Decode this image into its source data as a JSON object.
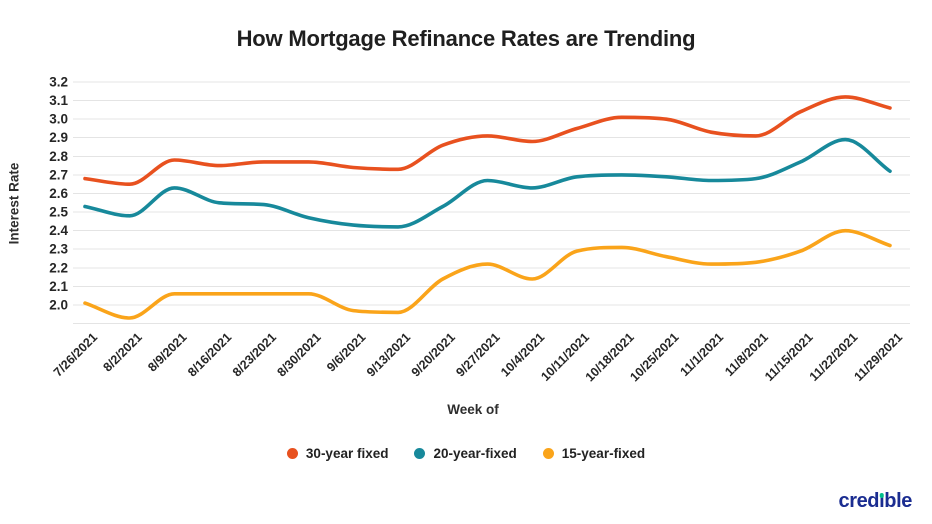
{
  "title": "How Mortgage Refinance Rates are Trending",
  "chart_data": {
    "type": "line",
    "xlabel": "Week of",
    "ylabel": "Interest Rate",
    "x": [
      "7/26/2021",
      "8/2/2021",
      "8/9/2021",
      "8/16/2021",
      "8/23/2021",
      "8/30/2021",
      "9/6/2021",
      "9/13/2021",
      "9/20/2021",
      "9/27/2021",
      "10/4/2021",
      "10/11/2021",
      "10/18/2021",
      "10/25/2021",
      "11/1/2021",
      "11/8/2021",
      "11/15/2021",
      "11/22/2021",
      "11/29/2021"
    ],
    "series": [
      {
        "name": "30-year fixed",
        "color": "#E8511F",
        "values": [
          2.68,
          2.65,
          2.78,
          2.75,
          2.77,
          2.77,
          2.74,
          2.73,
          2.86,
          2.91,
          2.88,
          2.95,
          3.01,
          3.0,
          2.93,
          2.91,
          3.04,
          3.12,
          3.06
        ]
      },
      {
        "name": "20-year-fixed",
        "color": "#17899B",
        "values": [
          2.53,
          2.48,
          2.63,
          2.55,
          2.54,
          2.47,
          2.43,
          2.42,
          2.53,
          2.67,
          2.63,
          2.69,
          2.7,
          2.69,
          2.67,
          2.68,
          2.77,
          2.89,
          2.72
        ]
      },
      {
        "name": "15-year-fixed",
        "color": "#FAA41A",
        "values": [
          2.01,
          1.93,
          2.06,
          2.06,
          2.06,
          2.06,
          1.97,
          1.96,
          2.14,
          2.22,
          2.14,
          2.29,
          2.31,
          2.26,
          2.22,
          2.23,
          2.29,
          2.4,
          2.32
        ]
      }
    ],
    "yticks": [
      2.0,
      2.1,
      2.2,
      2.3,
      2.4,
      2.5,
      2.6,
      2.7,
      2.8,
      2.9,
      3.0,
      3.1,
      3.2
    ],
    "ylim": [
      1.9,
      3.2
    ],
    "grid": "horizontal",
    "legend_position": "bottom",
    "gridline_color": "#E4E4E4",
    "tick_label_color": "#262626"
  },
  "branding": {
    "logo_text_pre": "cred",
    "logo_text_i": "ı",
    "logo_text_post": "ble",
    "logo_color": "#1B2D91",
    "logo_dot_color": "#00BF8B"
  }
}
